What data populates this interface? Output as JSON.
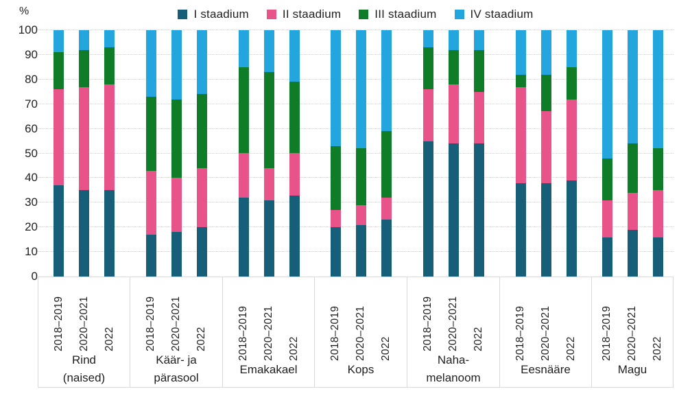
{
  "unit_label": "%",
  "legend": {
    "items": [
      {
        "label": "I staadium",
        "color": "#175e78"
      },
      {
        "label": "II staadium",
        "color": "#e8538a"
      },
      {
        "label": "III staadium",
        "color": "#0f7c27"
      },
      {
        "label": "IV staadium",
        "color": "#23a5dd"
      }
    ]
  },
  "y_axis": {
    "ticks": [
      100,
      90,
      80,
      70,
      60,
      50,
      40,
      30,
      20,
      10,
      0
    ]
  },
  "groups": [
    {
      "label_lines": [
        "Rind",
        "(naised)"
      ]
    },
    {
      "label_lines": [
        "Käär- ja",
        "pärasool"
      ]
    },
    {
      "label_lines": [
        "Emakakael"
      ]
    },
    {
      "label_lines": [
        "Kops"
      ]
    },
    {
      "label_lines": [
        "Naha-",
        "melanoom"
      ]
    },
    {
      "label_lines": [
        "Eesnääre"
      ]
    },
    {
      "label_lines": [
        "Magu"
      ]
    }
  ],
  "chart_data": {
    "type": "bar",
    "stacked": true,
    "percent": true,
    "title": "",
    "ylabel": "%",
    "ylim": [
      0,
      100
    ],
    "grid": "horizontal dotted every 10",
    "legend_position": "top",
    "categories": [
      "Rind (naised)",
      "Käär- ja pärasool",
      "Emakakael",
      "Kops",
      "Nahamelanoom",
      "Eesnääre",
      "Magu"
    ],
    "x_subgroups": [
      "2018–2019",
      "2020–2021",
      "2022"
    ],
    "series": [
      {
        "name": "I staadium",
        "color": "#175e78",
        "values": [
          [
            37,
            35,
            35
          ],
          [
            17,
            18,
            20
          ],
          [
            32,
            31,
            33
          ],
          [
            20,
            21,
            23
          ],
          [
            55,
            54,
            54
          ],
          [
            38,
            38,
            39
          ],
          [
            16,
            19,
            16
          ]
        ]
      },
      {
        "name": "II staadium",
        "color": "#e8538a",
        "values": [
          [
            39,
            42,
            43
          ],
          [
            26,
            22,
            24
          ],
          [
            18,
            13,
            17
          ],
          [
            7,
            8,
            9
          ],
          [
            21,
            24,
            21
          ],
          [
            39,
            29,
            33
          ],
          [
            15,
            15,
            19
          ]
        ]
      },
      {
        "name": "III staadium",
        "color": "#0f7c27",
        "values": [
          [
            15,
            15,
            15
          ],
          [
            30,
            32,
            30
          ],
          [
            35,
            39,
            29
          ],
          [
            26,
            23,
            27
          ],
          [
            17,
            14,
            17
          ],
          [
            5,
            15,
            13
          ],
          [
            17,
            20,
            17
          ]
        ]
      },
      {
        "name": "IV staadium",
        "color": "#23a5dd",
        "values": [
          [
            9,
            8,
            7
          ],
          [
            27,
            28,
            26
          ],
          [
            15,
            17,
            21
          ],
          [
            47,
            48,
            41
          ],
          [
            7,
            8,
            8
          ],
          [
            18,
            18,
            15
          ],
          [
            52,
            46,
            48
          ]
        ]
      }
    ]
  }
}
